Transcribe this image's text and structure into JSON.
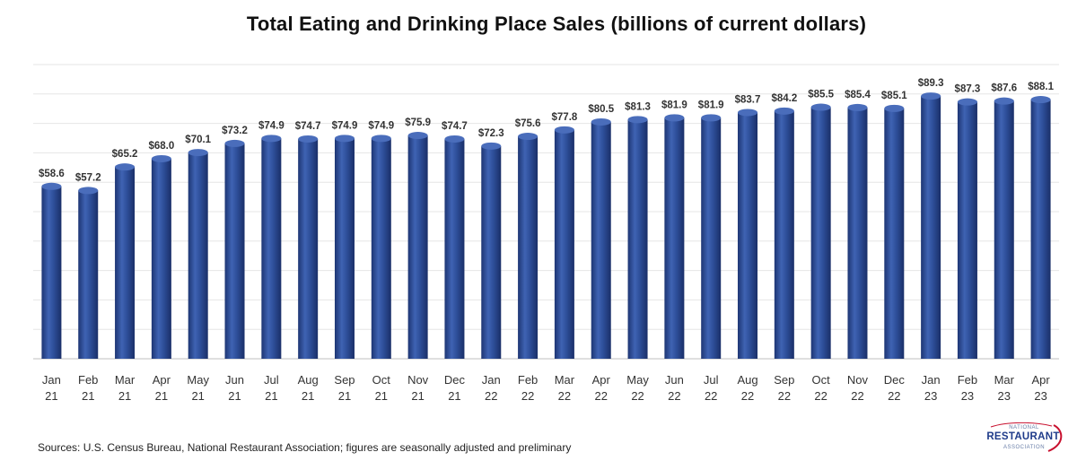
{
  "chart_data": {
    "type": "bar",
    "title": "Total Eating and Drinking Place Sales (billions of current dollars)",
    "categories": [
      [
        "Jan",
        "21"
      ],
      [
        "Feb",
        "21"
      ],
      [
        "Mar",
        "21"
      ],
      [
        "Apr",
        "21"
      ],
      [
        "May",
        "21"
      ],
      [
        "Jun",
        "21"
      ],
      [
        "Jul",
        "21"
      ],
      [
        "Aug",
        "21"
      ],
      [
        "Sep",
        "21"
      ],
      [
        "Oct",
        "21"
      ],
      [
        "Nov",
        "21"
      ],
      [
        "Dec",
        "21"
      ],
      [
        "Jan",
        "22"
      ],
      [
        "Feb",
        "22"
      ],
      [
        "Mar",
        "22"
      ],
      [
        "Apr",
        "22"
      ],
      [
        "May",
        "22"
      ],
      [
        "Jun",
        "22"
      ],
      [
        "Jul",
        "22"
      ],
      [
        "Aug",
        "22"
      ],
      [
        "Sep",
        "22"
      ],
      [
        "Oct",
        "22"
      ],
      [
        "Nov",
        "22"
      ],
      [
        "Dec",
        "22"
      ],
      [
        "Jan",
        "23"
      ],
      [
        "Feb",
        "23"
      ],
      [
        "Mar",
        "23"
      ],
      [
        "Apr",
        "23"
      ]
    ],
    "values": [
      58.6,
      57.2,
      65.2,
      68.0,
      70.1,
      73.2,
      74.9,
      74.7,
      74.9,
      74.9,
      75.9,
      74.7,
      72.3,
      75.6,
      77.8,
      80.5,
      81.3,
      81.9,
      81.9,
      83.7,
      84.2,
      85.5,
      85.4,
      85.1,
      89.3,
      87.3,
      87.6,
      88.1
    ],
    "data_labels": [
      "$58.6",
      "$57.2",
      "$65.2",
      "$68.0",
      "$70.1",
      "$73.2",
      "$74.9",
      "$74.7",
      "$74.9",
      "$74.9",
      "$75.9",
      "$74.7",
      "$72.3",
      "$75.6",
      "$77.8",
      "$80.5",
      "$81.3",
      "$81.9",
      "$81.9",
      "$83.7",
      "$84.2",
      "$85.5",
      "$85.4",
      "$85.1",
      "$89.3",
      "$87.3",
      "$87.6",
      "$88.1"
    ],
    "ylim": [
      0,
      100
    ],
    "grid": true,
    "bar_color": "#2e4f9a",
    "bar_color_dark": "#1d3573",
    "bar_color_light": "#5b7cc4"
  },
  "footer": {
    "source": "Sources: U.S. Census Bureau, National Restaurant Association; figures are seasonally adjusted and preliminary"
  },
  "logo": {
    "top_text": "NATIONAL",
    "main_text": "RESTAURANT",
    "bottom_text": "ASSOCIATION",
    "brand_color": "#1f3b8a",
    "accent_color": "#c8102e"
  }
}
